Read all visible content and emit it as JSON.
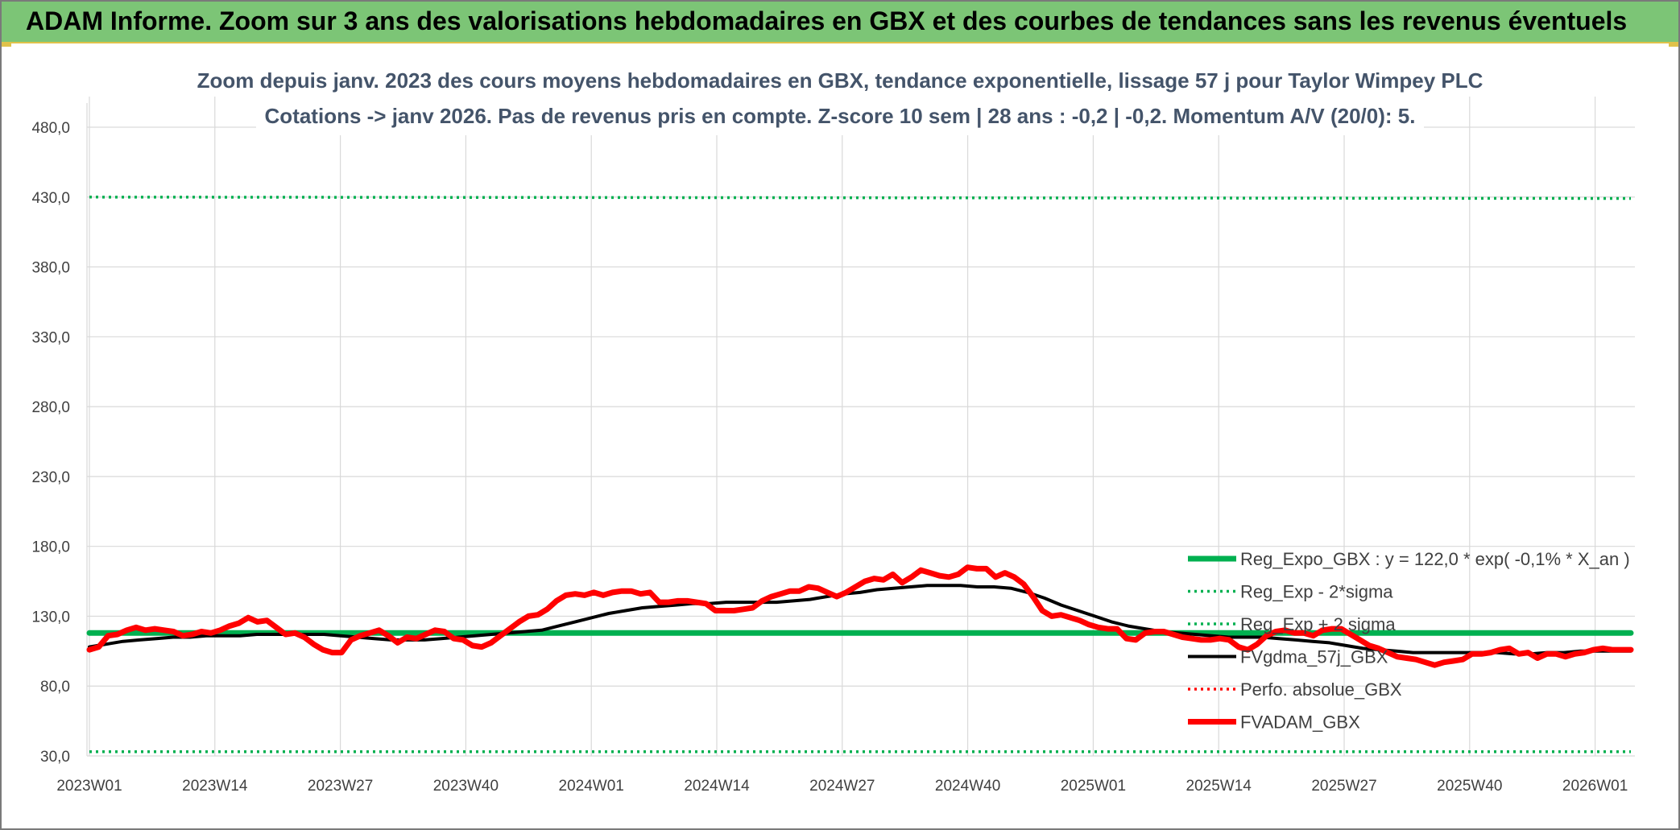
{
  "header": {
    "title": "ADAM Informe. Zoom sur 3 ans des valorisations hebdomadaires en GBX et des courbes de tendances sans les revenus éventuels"
  },
  "colors": {
    "header_bg": "#7cc576",
    "trend": "#00b050",
    "fvgdma": "#000000",
    "fvadam": "#ff0000",
    "perfo": "#ff0000",
    "grid": "#d9d9d9"
  },
  "chart_data": {
    "type": "line",
    "title_line1": "Zoom depuis janv. 2023 des cours moyens hebdomadaires en GBX, tendance exponentielle, lissage 57 j pour Taylor Wimpey PLC",
    "title_line2": "Cotations -> janv 2026. Pas de revenus pris en compte. Z-score 10 sem | 28 ans : -0,2 | -0,2. Momentum A/V (20/0): 5.",
    "x_tick_labels": [
      "2023W01",
      "2023W14",
      "2023W27",
      "2023W40",
      "2024W01",
      "2024W14",
      "2024W27",
      "2024W40",
      "2025W01",
      "2025W14",
      "2025W27",
      "2025W40",
      "2026W01"
    ],
    "y_tick_labels": [
      "30,0",
      "80,0",
      "130,0",
      "180,0",
      "230,0",
      "280,0",
      "330,0",
      "380,0",
      "430,0",
      "480,0"
    ],
    "ylim": [
      30,
      480
    ],
    "grid": true,
    "legend_position": "bottom-right",
    "series": [
      {
        "name": "Reg_Expo_GBX : y = 122,0 * exp( -0,1% *  X_an )",
        "style": "solid-thick",
        "color": "#00b050",
        "values": [
          118,
          118
        ]
      },
      {
        "name": "Reg_Exp - 2*sigma",
        "style": "dotted",
        "color": "#00b050",
        "values": [
          33,
          33
        ]
      },
      {
        "name": "Reg_Exp + 2 sigma",
        "style": "dotted",
        "color": "#00b050",
        "values": [
          430,
          429
        ]
      },
      {
        "name": "FVgdma_57j_GBX",
        "style": "solid",
        "color": "#000000",
        "values": [
          108,
          110,
          112,
          113,
          114,
          115,
          115,
          116,
          116,
          116,
          117,
          117,
          117,
          117,
          117,
          116,
          115,
          114,
          113,
          113,
          113,
          114,
          115,
          116,
          117,
          118,
          119,
          120,
          123,
          126,
          129,
          132,
          134,
          136,
          137,
          138,
          139,
          139,
          140,
          140,
          140,
          140,
          141,
          142,
          144,
          146,
          147,
          149,
          150,
          151,
          152,
          152,
          152,
          151,
          151,
          150,
          147,
          143,
          138,
          134,
          130,
          126,
          123,
          121,
          119,
          118,
          117,
          116,
          115,
          115,
          115,
          114,
          113,
          112,
          111,
          109,
          107,
          106,
          105,
          104,
          104,
          104,
          104,
          104,
          104,
          103,
          103,
          104,
          104,
          105,
          105,
          105,
          105
        ]
      },
      {
        "name": "Perfo. absolue_GBX",
        "style": "dotted",
        "color": "#ff0000",
        "values": []
      },
      {
        "name": "FVADAM_GBX",
        "style": "solid-thick",
        "color": "#ff0000",
        "values": [
          106,
          108,
          116,
          117,
          120,
          122,
          120,
          121,
          120,
          119,
          116,
          117,
          119,
          118,
          120,
          123,
          125,
          129,
          126,
          127,
          122,
          117,
          118,
          115,
          110,
          106,
          104,
          104,
          113,
          116,
          118,
          120,
          116,
          111,
          115,
          114,
          117,
          120,
          119,
          114,
          113,
          109,
          108,
          111,
          116,
          121,
          126,
          130,
          131,
          135,
          141,
          145,
          146,
          145,
          147,
          145,
          147,
          148,
          148,
          146,
          147,
          140,
          140,
          141,
          141,
          140,
          139,
          134,
          134,
          134,
          135,
          136,
          141,
          144,
          146,
          148,
          148,
          151,
          150,
          147,
          144,
          147,
          151,
          155,
          157,
          156,
          160,
          154,
          158,
          163,
          161,
          159,
          158,
          160,
          165,
          164,
          164,
          158,
          161,
          158,
          153,
          144,
          134,
          130,
          131,
          129,
          127,
          124,
          122,
          121,
          121,
          114,
          113,
          118,
          119,
          119,
          117,
          115,
          114,
          113,
          113,
          114,
          113,
          108,
          106,
          110,
          116,
          119,
          120,
          118,
          118,
          116,
          120,
          121,
          121,
          117,
          113,
          109,
          107,
          104,
          101,
          100,
          99,
          97,
          95,
          97,
          98,
          99,
          103,
          103,
          104,
          106,
          107,
          103,
          104,
          100,
          103,
          103,
          101,
          103,
          104,
          106,
          107,
          106,
          106,
          106
        ]
      }
    ]
  }
}
